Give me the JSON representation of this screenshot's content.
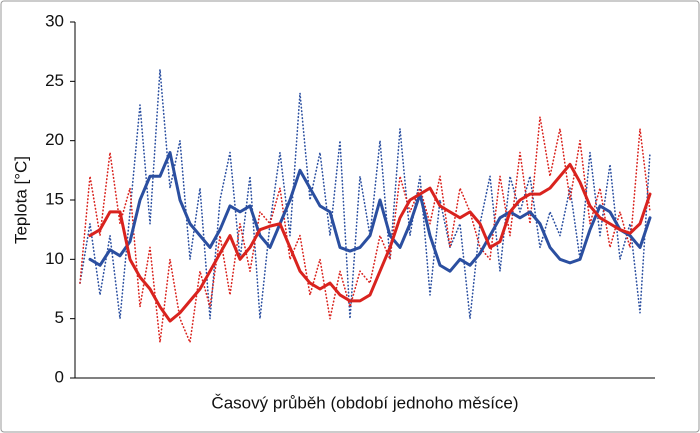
{
  "chart_data": {
    "type": "line",
    "ylabel": "Teplota [°C]",
    "xlabel": "Časový průběh (období jednoho měsíce)",
    "ylim": [
      0,
      30
    ],
    "yticks": [
      0,
      5,
      10,
      15,
      20,
      25,
      30
    ],
    "series": [
      {
        "color": "#2b4fa0",
        "line_style": "dotted",
        "line_width": 1.6,
        "values": [
          8,
          13,
          7,
          12,
          5,
          14,
          23,
          13,
          26,
          16,
          20,
          10,
          16,
          5,
          15,
          19,
          10,
          17,
          5,
          13,
          19,
          12,
          24,
          15,
          19,
          12,
          20,
          5,
          17,
          12,
          20,
          10,
          21,
          12,
          17,
          7,
          15,
          11,
          13,
          5,
          13,
          17,
          9,
          17,
          14,
          17,
          11,
          14,
          12,
          16,
          10,
          19,
          12,
          18,
          10,
          13,
          5.5,
          19
        ]
      },
      {
        "color": "#d9231e",
        "line_style": "dotted",
        "line_width": 1.6,
        "values": [
          8,
          17,
          12,
          19,
          13,
          16,
          6,
          11,
          3,
          10,
          5,
          3,
          9,
          6,
          12,
          7,
          13,
          9,
          14,
          13,
          16,
          10,
          12,
          7,
          10,
          5,
          9,
          6,
          9,
          8,
          12,
          10,
          17,
          14,
          16,
          13,
          17,
          11,
          16,
          14,
          11,
          10,
          17,
          12,
          19,
          13,
          22,
          17,
          21,
          15,
          20,
          13,
          16,
          11,
          14,
          11,
          21,
          14
        ]
      },
      {
        "color": "#2b4fa0",
        "line_style": "solid",
        "line_width": 3,
        "values": [
          null,
          10,
          9.5,
          10.8,
          10.3,
          11.5,
          15,
          17,
          17,
          19,
          15,
          13,
          12,
          11,
          12.5,
          14.5,
          14,
          14.5,
          12,
          11,
          13,
          15,
          17.5,
          16,
          14.5,
          14,
          11,
          10.7,
          11,
          12,
          15,
          12,
          11,
          13,
          15.5,
          12,
          9.5,
          9,
          10,
          9.5,
          10.5,
          12,
          13.5,
          14,
          13.5,
          14,
          13,
          11,
          10,
          9.7,
          10,
          12.5,
          14.5,
          14,
          12.5,
          12,
          11,
          13.5
        ]
      },
      {
        "color": "#d9231e",
        "line_style": "solid",
        "line_width": 3,
        "values": [
          null,
          12,
          12.5,
          14,
          14,
          10,
          8.5,
          7.5,
          6,
          4.8,
          5.5,
          6.5,
          7.5,
          9,
          10.5,
          12,
          10,
          11,
          12.5,
          12.8,
          13,
          11,
          9,
          8,
          7.5,
          8,
          7,
          6.5,
          6.5,
          7,
          9,
          11,
          13.5,
          15,
          15.5,
          16,
          14.5,
          14,
          13.5,
          14,
          13,
          11,
          11.5,
          14,
          15,
          15.5,
          15.5,
          16,
          17,
          18,
          16.5,
          14.5,
          13.5,
          13,
          12.5,
          12.2,
          13,
          15.5
        ]
      }
    ]
  }
}
